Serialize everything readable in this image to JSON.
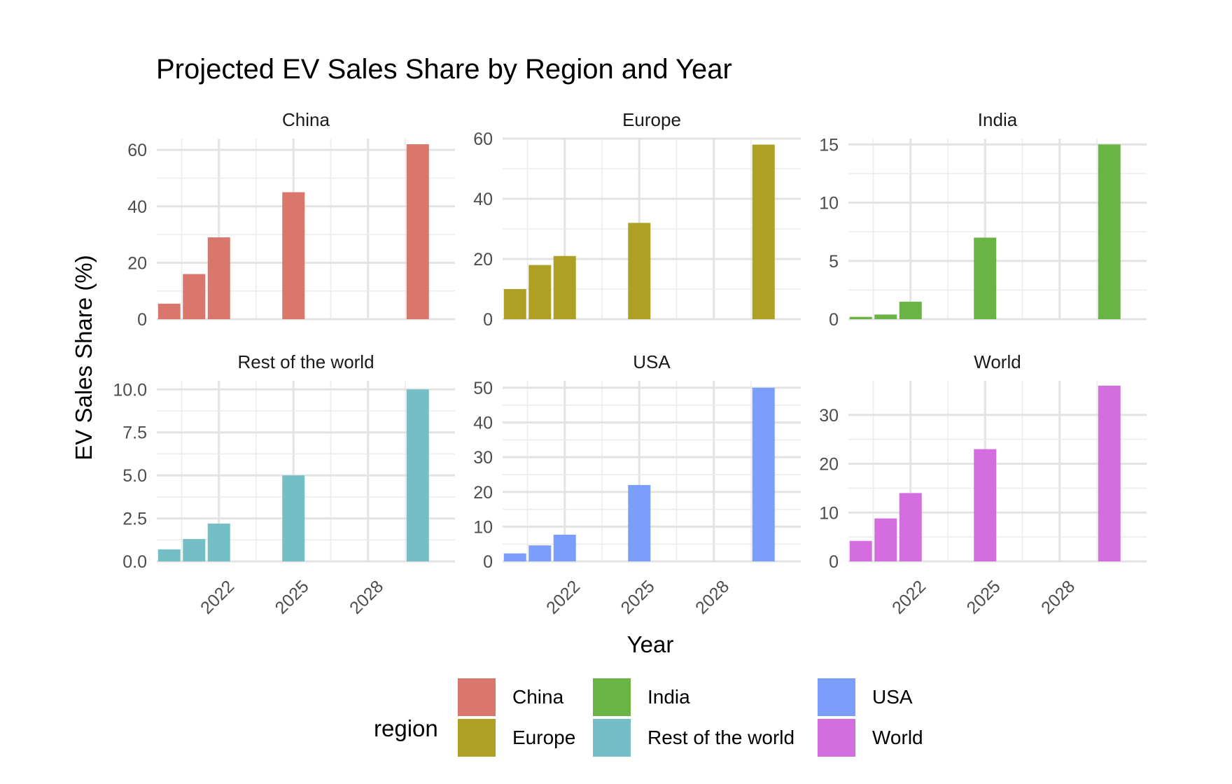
{
  "chart_data": {
    "type": "bar",
    "title": "Projected EV Sales Share by Region and Year",
    "xlabel": "Year",
    "ylabel": "EV Sales Share (%)",
    "x_ticks": [
      2022,
      2025,
      2028
    ],
    "x_range": [
      2019.5,
      2031.5
    ],
    "x": [
      2020,
      2021,
      2022,
      2025,
      2030
    ],
    "grid": "on",
    "facets": [
      {
        "name": "China",
        "color": "#D9776C",
        "ylim": [
          0,
          64
        ],
        "yticks": [
          0,
          20,
          40,
          60
        ],
        "ytick_labels": [
          "0",
          "20",
          "40",
          "60"
        ],
        "values": [
          5.5,
          16,
          29,
          45,
          62
        ]
      },
      {
        "name": "Europe",
        "color": "#AE9F25",
        "ylim": [
          0,
          60
        ],
        "yticks": [
          0,
          20,
          40,
          60
        ],
        "ytick_labels": [
          "0",
          "20",
          "40",
          "60"
        ],
        "values": [
          10,
          18,
          21,
          32,
          58
        ]
      },
      {
        "name": "India",
        "color": "#69B444",
        "ylim": [
          0,
          15.5
        ],
        "yticks": [
          0,
          5,
          10,
          15
        ],
        "ytick_labels": [
          "0",
          "5",
          "10",
          "15"
        ],
        "values": [
          0.2,
          0.4,
          1.5,
          7,
          15
        ]
      },
      {
        "name": "Rest of the world",
        "color": "#73BFC5",
        "ylim": [
          0,
          10.5
        ],
        "yticks": [
          0,
          2.5,
          5,
          7.5,
          10
        ],
        "ytick_labels": [
          "0.0",
          "2.5",
          "5.0",
          "7.5",
          "10.0"
        ],
        "values": [
          0.7,
          1.3,
          2.2,
          5,
          10
        ]
      },
      {
        "name": "USA",
        "color": "#7B9EFA",
        "ylim": [
          0,
          52
        ],
        "yticks": [
          0,
          10,
          20,
          30,
          40,
          50
        ],
        "ytick_labels": [
          "0",
          "10",
          "20",
          "30",
          "40",
          "50"
        ],
        "values": [
          2.3,
          4.6,
          7.7,
          22,
          50
        ]
      },
      {
        "name": "World",
        "color": "#D46EE0",
        "ylim": [
          0,
          37
        ],
        "yticks": [
          0,
          10,
          20,
          30
        ],
        "ytick_labels": [
          "0",
          "10",
          "20",
          "30"
        ],
        "values": [
          4.2,
          8.8,
          14,
          23,
          36
        ]
      }
    ],
    "legend": {
      "title": "region",
      "placement": "bottom",
      "items": [
        {
          "label": "China",
          "color": "#D9776C"
        },
        {
          "label": "Europe",
          "color": "#AE9F25"
        },
        {
          "label": "India",
          "color": "#69B444"
        },
        {
          "label": "Rest of the world",
          "color": "#73BFC5"
        },
        {
          "label": "USA",
          "color": "#7B9EFA"
        },
        {
          "label": "World",
          "color": "#D46EE0"
        }
      ]
    }
  }
}
